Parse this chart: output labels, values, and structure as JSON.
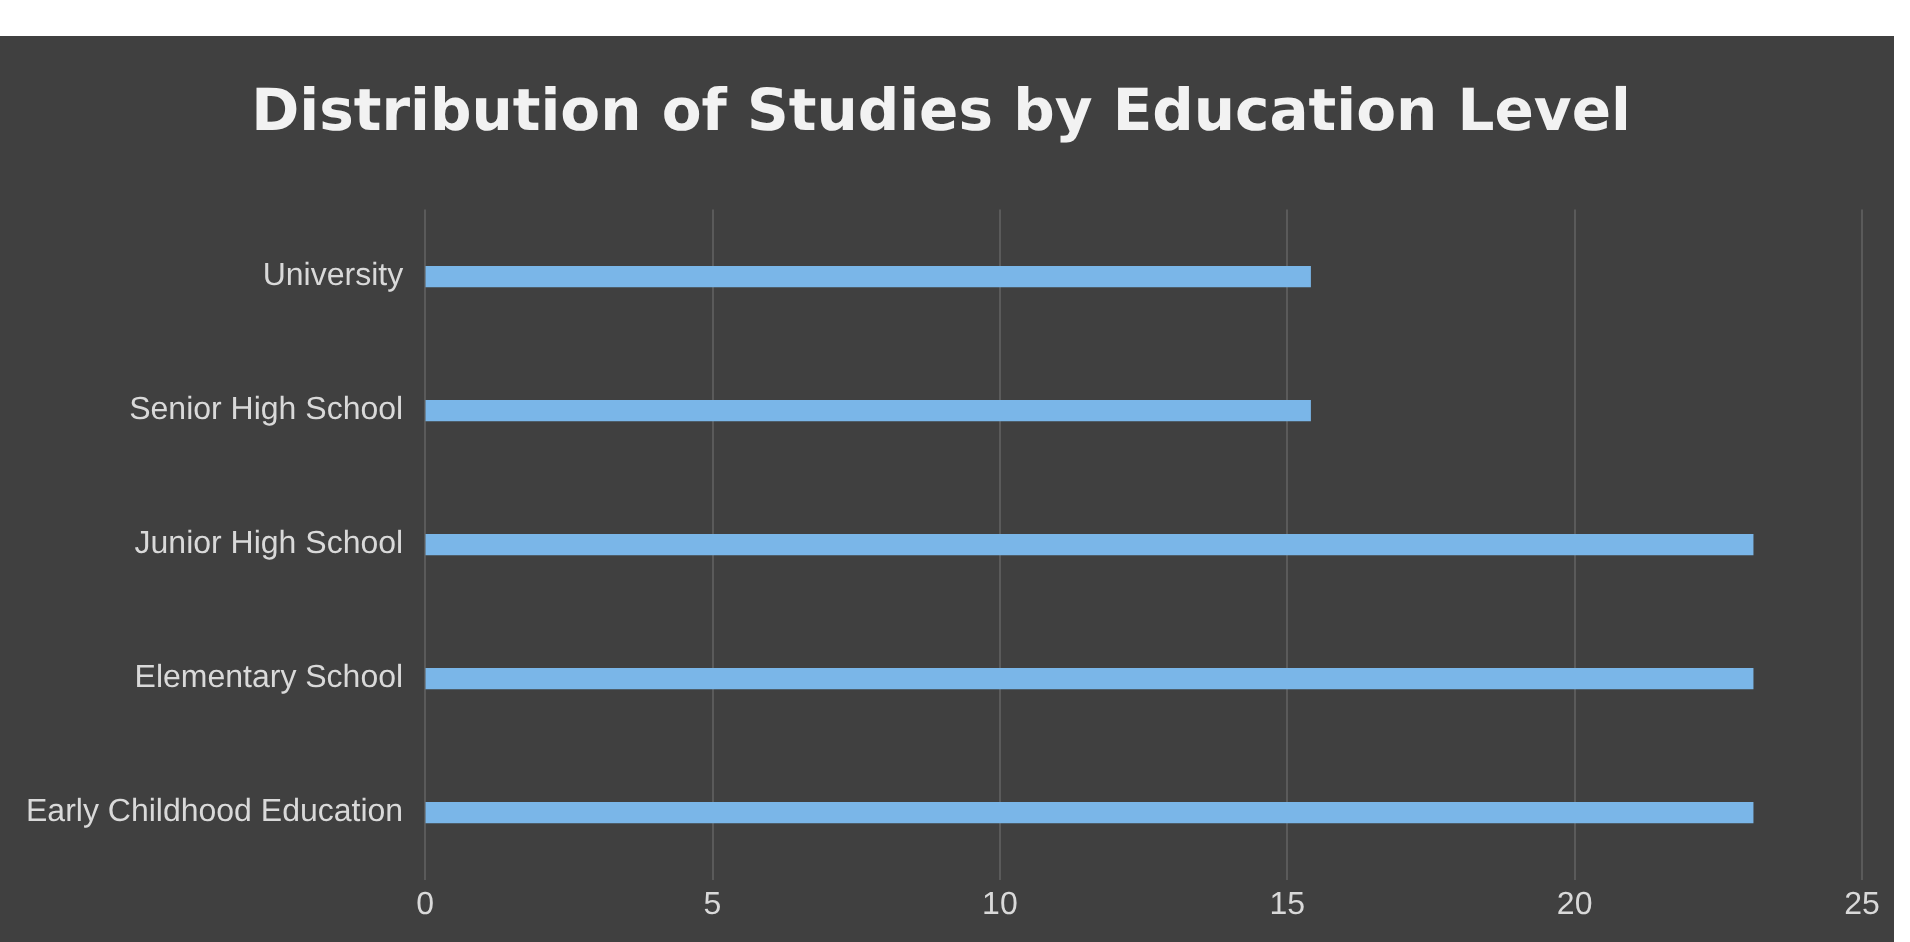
{
  "chart_data": {
    "type": "bar",
    "orientation": "horizontal",
    "title": "Distribution of Studies by Education Level",
    "categories": [
      "University",
      "Senior High School",
      "Junior High School",
      "Elementary School",
      "Early Childhood Education"
    ],
    "values": [
      15.4,
      15.4,
      23.1,
      23.1,
      23.1
    ],
    "color": "#7ab6e8",
    "xlim": [
      0,
      25
    ],
    "xticks": [
      0,
      5,
      10,
      15,
      20,
      25
    ],
    "grid": "x",
    "legend": false
  }
}
